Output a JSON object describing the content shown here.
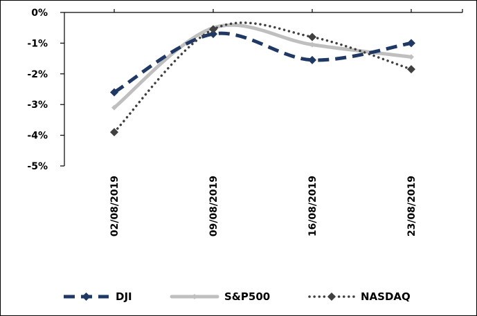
{
  "chart_data": {
    "type": "line",
    "categories": [
      "02/08/2019",
      "09/08/2019",
      "16/08/2019",
      "23/08/2019"
    ],
    "ylim": [
      -5,
      0
    ],
    "y_ticks": [
      0,
      -1,
      -2,
      -3,
      -4,
      -5
    ],
    "y_tick_labels": [
      "0%",
      "-1%",
      "-2%",
      "-3%",
      "-4%",
      "-5%"
    ],
    "x_tick_labels": [
      "02/08/2019",
      "09/08/2019",
      "16/08/2019",
      "23/08/2019"
    ],
    "legend_position": "bottom",
    "grid": false,
    "series": [
      {
        "name": "DJI",
        "values": [
          -2.6,
          -0.7,
          -1.55,
          -1.0
        ],
        "color": "#1f3864",
        "style": "dashed",
        "marker": "diamond",
        "smooth": true
      },
      {
        "name": "S&P500",
        "values": [
          -3.1,
          -0.5,
          -1.05,
          -1.45
        ],
        "color": "#bfbfbf",
        "style": "solid",
        "marker": "diamond",
        "smooth": true
      },
      {
        "name": "NASDAQ",
        "values": [
          -3.9,
          -0.55,
          -0.8,
          -1.85
        ],
        "color": "#404040",
        "style": "dotted",
        "marker": "diamond",
        "smooth": true
      }
    ]
  }
}
